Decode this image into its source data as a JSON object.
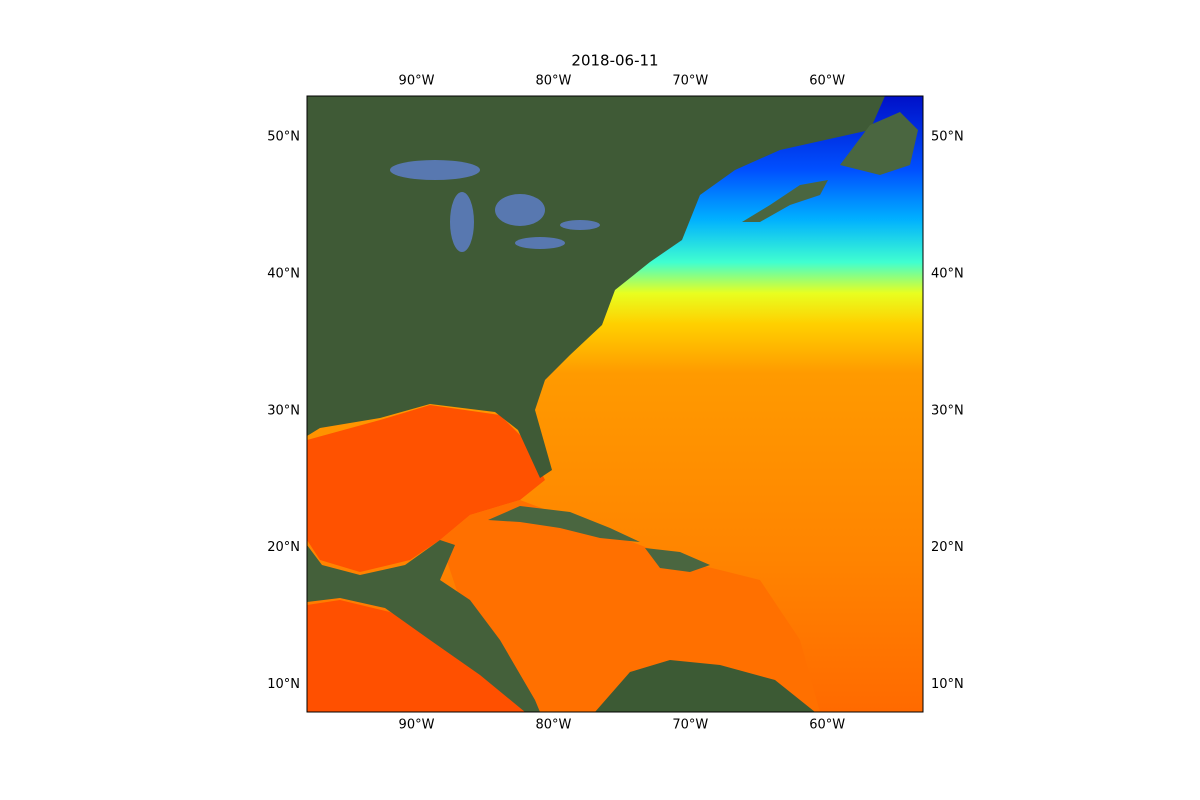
{
  "chart_data": {
    "type": "map",
    "title": "2018-06-11",
    "xlim": [
      -98,
      -53
    ],
    "ylim": [
      8,
      53
    ],
    "xticks": [
      {
        "value": -90,
        "label": "90°W"
      },
      {
        "value": -80,
        "label": "80°W"
      },
      {
        "value": -70,
        "label": "70°W"
      },
      {
        "value": -60,
        "label": "60°W"
      }
    ],
    "yticks": [
      {
        "value": 10,
        "label": "10°N"
      },
      {
        "value": 20,
        "label": "20°N"
      },
      {
        "value": 30,
        "label": "30°N"
      },
      {
        "value": 40,
        "label": "40°N"
      },
      {
        "value": 50,
        "label": "50°N"
      }
    ]
  }
}
